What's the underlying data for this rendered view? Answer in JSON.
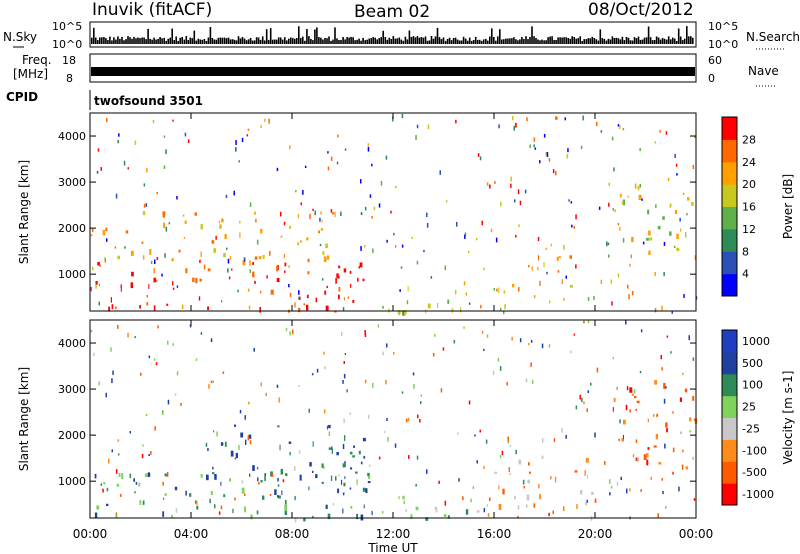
{
  "header": {
    "station": "Inuvik (fitACF)",
    "beam": "Beam 02",
    "date": "08/Oct/2012"
  },
  "strip_panels": {
    "nsky": {
      "label": "N.Sky",
      "left_ticks": [
        "10^5",
        "10^0"
      ],
      "right_ticks": [
        "10^5",
        "10^0"
      ],
      "right_label": "N.Search"
    },
    "freq": {
      "label_line1": "Freq.",
      "label_line2": "[MHz]",
      "left_ticks": [
        "18",
        "8"
      ],
      "right_ticks": [
        "60",
        "0"
      ],
      "right_label": "Nave"
    },
    "cpid": {
      "label": "CPID",
      "value": "twofsound 3501"
    }
  },
  "x_axis": {
    "label": "Time UT",
    "ticks": [
      "00:00",
      "04:00",
      "08:00",
      "12:00",
      "16:00",
      "20:00",
      "00:00"
    ]
  },
  "colors": {
    "power": [
      "#0000ff",
      "#2a4fb5",
      "#2e8b57",
      "#5fb04a",
      "#c8c81e",
      "#ff9f00",
      "#ff6a00",
      "#ff0000"
    ],
    "velocity": [
      "#ff0000",
      "#ff5a00",
      "#ff8c1a",
      "#c8c8c8",
      "#7fd35a",
      "#2e8b57",
      "#20409f",
      "#1f3fc0"
    ]
  },
  "chart_data": [
    {
      "type": "heatmap",
      "title": "Power",
      "xlabel": "Time UT",
      "ylabel": "Slant Range [km]",
      "y_ticks": [
        1000,
        2000,
        3000,
        4000
      ],
      "ylim": [
        200,
        4500
      ],
      "colorbar": {
        "label": "Power [dB]",
        "ticks": [
          "4",
          "8",
          "12",
          "16",
          "20",
          "24",
          "28"
        ]
      },
      "regions": [
        {
          "t0": 0.0,
          "t1": 11.0,
          "r0": 200,
          "r1": 1300,
          "level": 7
        },
        {
          "t0": 0.0,
          "t1": 10.0,
          "r0": 1300,
          "r1": 2400,
          "level": 5
        },
        {
          "t0": 11.5,
          "t1": 16.5,
          "r0": 200,
          "r1": 800,
          "level": 3
        },
        {
          "t0": 16.5,
          "t1": 19.5,
          "r0": 700,
          "r1": 1500,
          "level": 5
        },
        {
          "t0": 20.5,
          "t1": 24.0,
          "r0": 1400,
          "r1": 3000,
          "level": 4
        }
      ]
    },
    {
      "type": "heatmap",
      "title": "Velocity",
      "xlabel": "Time UT",
      "ylabel": "Slant Range [km]",
      "y_ticks": [
        1000,
        2000,
        3000,
        4000
      ],
      "ylim": [
        200,
        4500
      ],
      "colorbar": {
        "label": "Velocity [m s-1]",
        "ticks": [
          "-1000",
          "-500",
          "-100",
          "-25",
          "25",
          "100",
          "500",
          "1000"
        ]
      },
      "regions": [
        {
          "t0": 0.0,
          "t1": 11.5,
          "r0": 200,
          "r1": 1200,
          "level": 5
        },
        {
          "t0": 4.5,
          "t1": 11.0,
          "r0": 900,
          "r1": 2300,
          "level": 6
        },
        {
          "t0": 11.5,
          "t1": 16.0,
          "r0": 200,
          "r1": 700,
          "level": 4
        },
        {
          "t0": 16.0,
          "t1": 20.0,
          "r0": 400,
          "r1": 1600,
          "level": 2
        },
        {
          "t0": 20.5,
          "t1": 24.0,
          "r0": 1200,
          "r1": 3200,
          "level": 1
        }
      ]
    }
  ]
}
